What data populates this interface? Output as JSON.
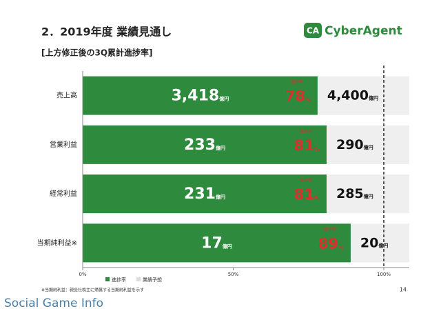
{
  "chart_data": {
    "type": "bar",
    "orientation": "horizontal",
    "title": "2．2019年度 業績見通し",
    "subtitle": "[上方修正後の3Q累計進捗率]",
    "logo": "CyberAgent",
    "categories": [
      "売上高",
      "営業利益",
      "経常利益",
      "当期純利益※"
    ],
    "unit": "億円",
    "percent_unit": "%",
    "rate_label": "進捗率",
    "series": [
      {
        "name": "進捗率",
        "color": "#2e8b3e",
        "values": [
          78,
          81,
          81,
          89
        ],
        "amounts": [
          3418,
          233,
          231,
          17
        ],
        "amount_labels": [
          "3,418",
          "233",
          "231",
          "17"
        ],
        "label_color": "#d9312b"
      },
      {
        "name": "業績予想",
        "color": "#efefef",
        "values": [
          4400,
          290,
          285,
          20
        ],
        "value_labels": [
          "4,400",
          "290",
          "285",
          "20"
        ]
      }
    ],
    "xlim": [
      0,
      100
    ],
    "xticks": [
      {
        "value": 0,
        "label": "0%"
      },
      {
        "value": 50,
        "label": "50%"
      },
      {
        "value": 100,
        "label": "100%"
      }
    ],
    "footnote": "※当期純利益：親会社株主に帰属する当期純利益を示す",
    "page_number": "14",
    "watermark": "Social Game Info"
  }
}
